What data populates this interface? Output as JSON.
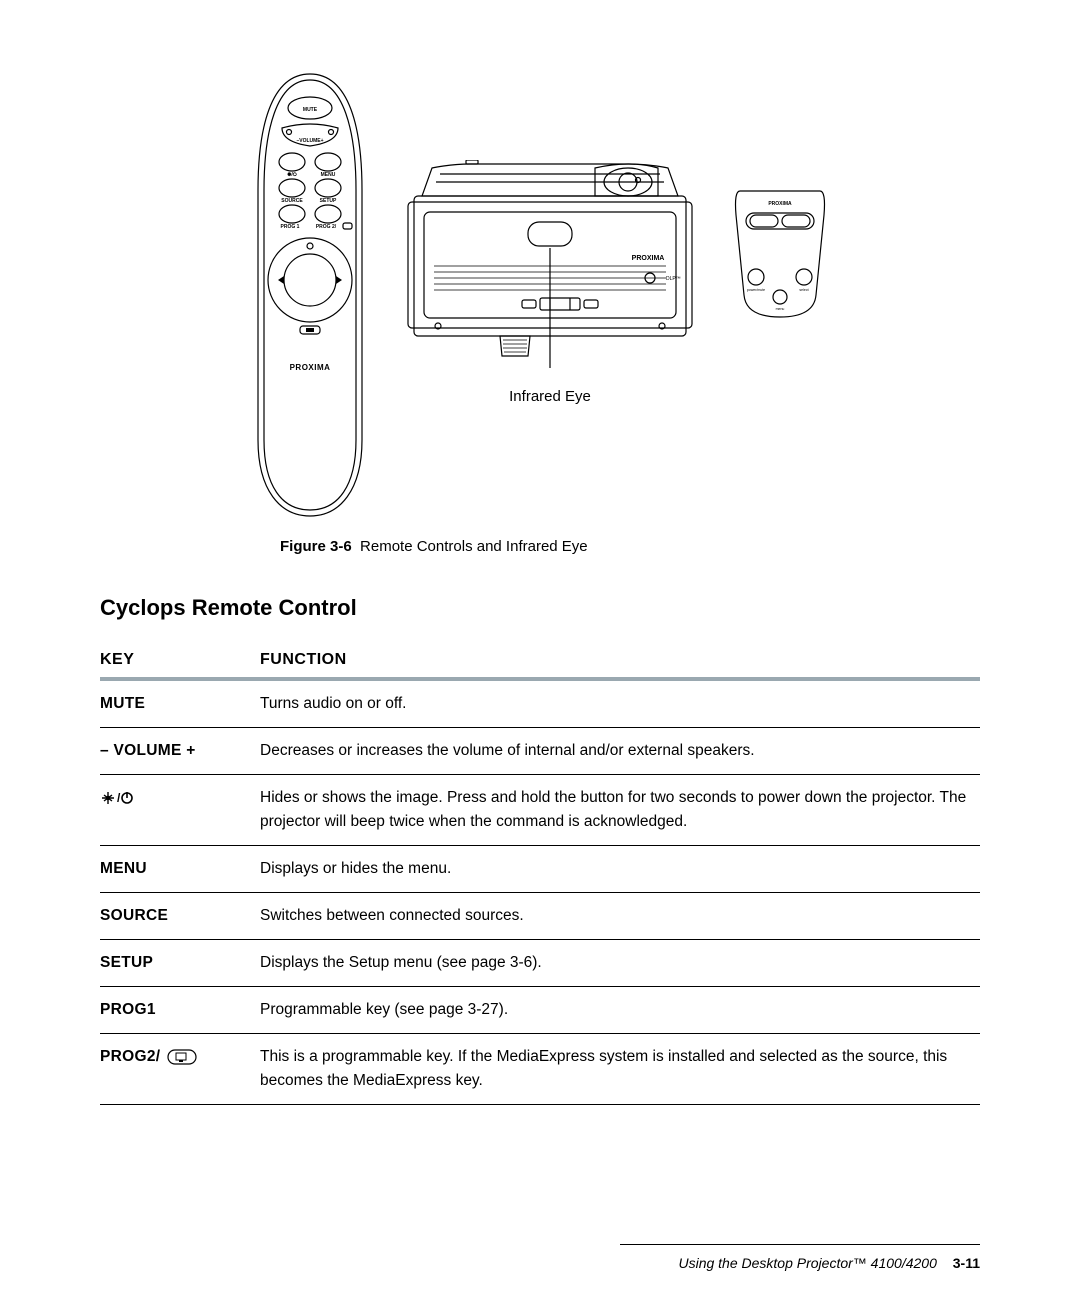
{
  "figure": {
    "caption_prefix": "Figure 3-6",
    "caption_text": "Remote Controls and Infrared Eye",
    "infrared_label": "Infrared Eye",
    "remote_labels": {
      "mute": "MUTE",
      "volume": "–VOLUME+",
      "power": "✺/⭘",
      "menu": "MENU",
      "source": "SOURCE",
      "setup": "SETUP",
      "prog1": "PROG 1",
      "prog2": "PROG 2/",
      "brand": "PROXIMA"
    },
    "projector_labels": {
      "brand": "PROXIMA",
      "dlp": "DLP™"
    },
    "keypad_labels": {
      "brand": "PROXIMA",
      "left_btn": "power/mute",
      "right_btn": "select",
      "bottom_btn": "menu"
    }
  },
  "section_title": "Cyclops Remote Control",
  "table": {
    "headers": {
      "key": "Key",
      "function": "Function"
    },
    "rows": [
      {
        "key": "Mute",
        "function": "Turns audio on or off."
      },
      {
        "key": "– Volume +",
        "function": "Decreases or increases the volume of internal and/or external speakers."
      },
      {
        "key": "__POWER__",
        "function": "Hides or shows the image. Press and hold the button for two seconds to power down the projector. The projector will beep twice when the command is acknowledged."
      },
      {
        "key": "Menu",
        "function": "Displays or hides the menu."
      },
      {
        "key": "Source",
        "function": "Switches between connected sources."
      },
      {
        "key": "Setup",
        "function": "Displays the Setup menu (see page 3-6)."
      },
      {
        "key": "Prog1",
        "function": "Programmable key (see page 3-27)."
      },
      {
        "key": "__PROG2__",
        "function": "This is a programmable key. If the MediaExpress system is installed and selected as the source, this becomes the MediaExpress key."
      }
    ]
  },
  "footer": {
    "doc": "Using the Desktop Projector™ 4100/4200",
    "page": "3-11"
  },
  "colors": {
    "text": "#000000",
    "background": "#ffffff",
    "header_rule": "#9aa8b0",
    "stroke": "#000000"
  }
}
